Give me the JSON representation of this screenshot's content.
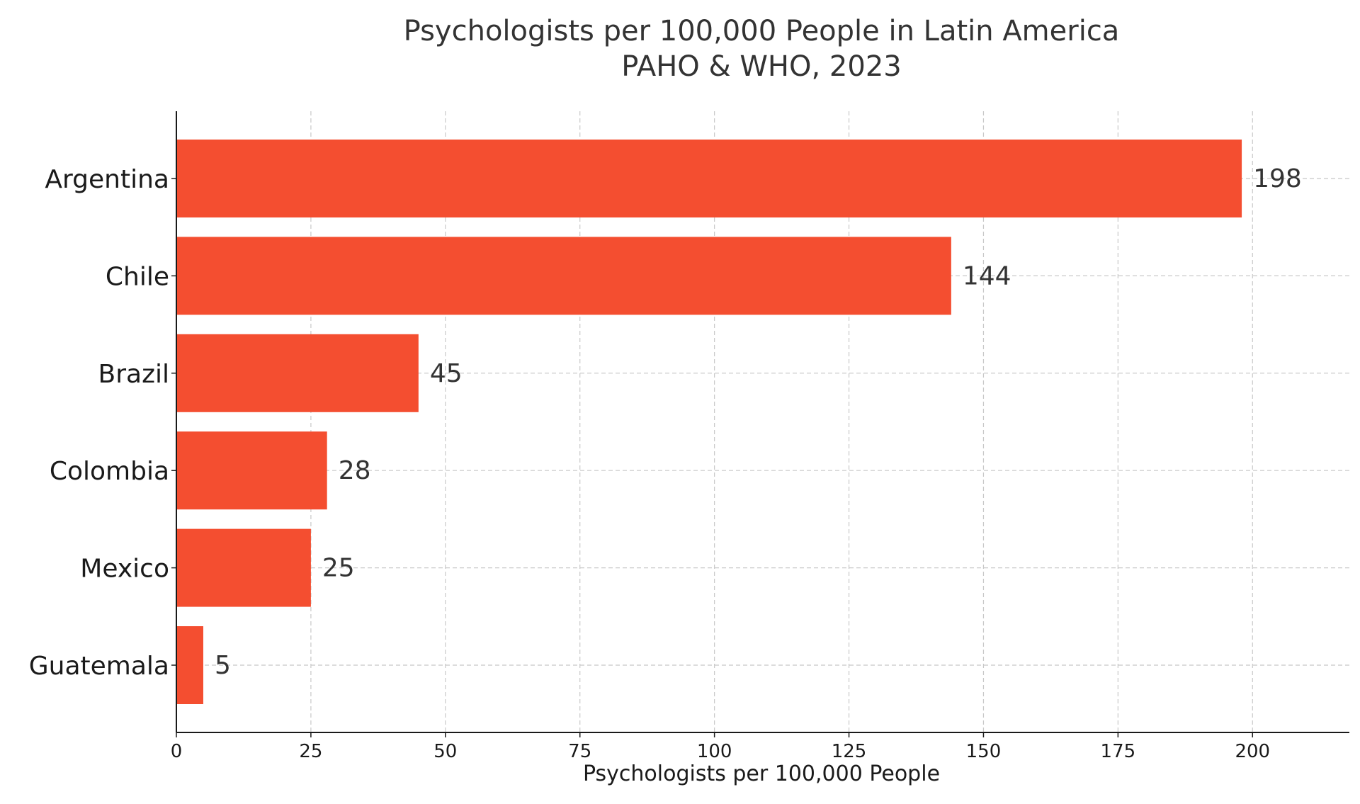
{
  "chart_data": {
    "type": "bar",
    "orientation": "horizontal",
    "title": "Psychologists per 100,000 People in Latin America",
    "subtitle": "PAHO & WHO, 2023",
    "xlabel": "Psychologists per 100,000 People",
    "ylabel": "",
    "categories": [
      "Argentina",
      "Chile",
      "Brazil",
      "Colombia",
      "Mexico",
      "Guatemala"
    ],
    "values": [
      198,
      144,
      45,
      28,
      25,
      5
    ],
    "value_labels": [
      "198",
      "144",
      "45",
      "28",
      "25",
      "5"
    ],
    "xlim": [
      0,
      218
    ],
    "xticks": [
      0,
      25,
      50,
      75,
      100,
      125,
      150,
      175,
      200
    ],
    "xtick_labels": [
      "0",
      "25",
      "50",
      "75",
      "100",
      "125",
      "150",
      "175",
      "200"
    ],
    "grid": true,
    "bar_color": "#f44e30"
  }
}
